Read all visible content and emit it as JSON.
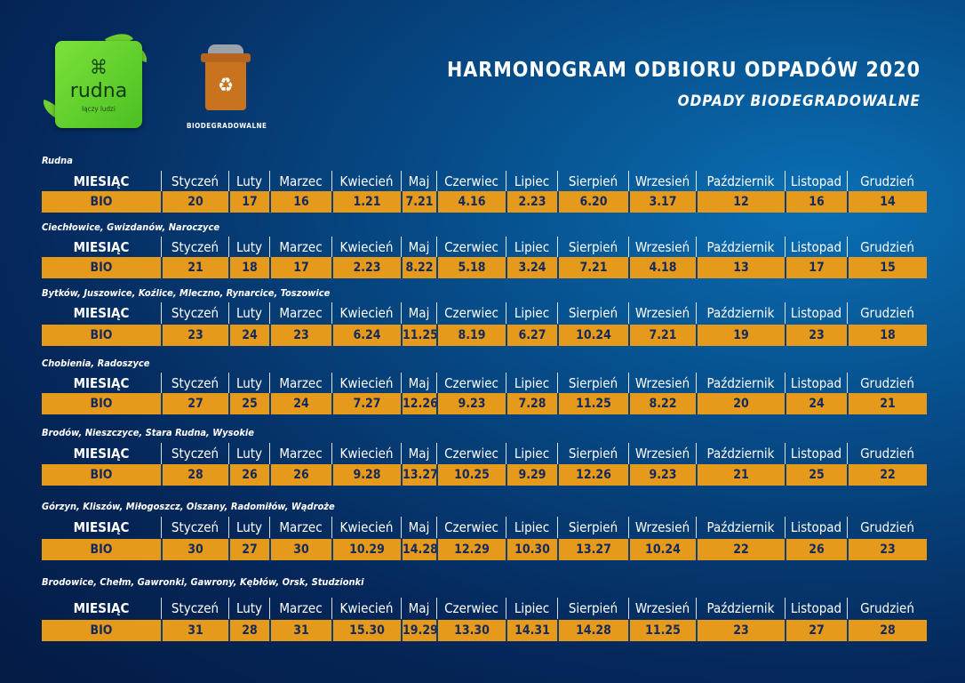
{
  "header": {
    "title": "HARMONOGRAM ODBIORU ODPADÓW 2020",
    "subtitle": "ODPADY BIODEGRADOWALNE",
    "bin_label": "BIODEGRADOWALNE",
    "logo_name": "rudna",
    "logo_tagline": "łączy ludzi",
    "logo_icon": "rudna-knot-icon",
    "bin_icon": "recycling-bin-icon",
    "colors": {
      "accent": "#e69a1c",
      "text_dark": "#142a5c",
      "background": "#05275a"
    }
  },
  "months_header": [
    "MIESIĄC",
    "Styczeń",
    "Luty",
    "Marzec",
    "Kwiecień",
    "Maj",
    "Czerwiec",
    "Lipiec",
    "Sierpień",
    "Wrzesień",
    "Październik",
    "Listopad",
    "Grudzień"
  ],
  "sections": [
    {
      "location": "Rudna",
      "label": "BIO",
      "values": [
        "20",
        "17",
        "16",
        "1.21",
        "7.21",
        "4.16",
        "2.23",
        "6.20",
        "3.17",
        "12",
        "16",
        "14"
      ]
    },
    {
      "location": "Ciechłowice, Gwizdanów, Naroczyce",
      "label": "BIO",
      "values": [
        "21",
        "18",
        "17",
        "2.23",
        "8.22",
        "5.18",
        "3.24",
        "7.21",
        "4.18",
        "13",
        "17",
        "15"
      ]
    },
    {
      "location": "Bytków, Juszowice, Koźlice, Mleczno, Rynarcice, Toszowice",
      "label": "BIO",
      "values": [
        "23",
        "24",
        "23",
        "6.24",
        "11.25",
        "8.19",
        "6.27",
        "10.24",
        "7.21",
        "19",
        "23",
        "18"
      ]
    },
    {
      "location": "Chobienia, Radoszyce",
      "label": "BIO",
      "values": [
        "27",
        "25",
        "24",
        "7.27",
        "12.26",
        "9.23",
        "7.28",
        "11.25",
        "8.22",
        "20",
        "24",
        "21"
      ]
    },
    {
      "location": "Brodów, Nieszczyce, Stara Rudna, Wysokie",
      "label": "BIO",
      "values": [
        "28",
        "26",
        "26",
        "9.28",
        "13.27",
        "10.25",
        "9.29",
        "12.26",
        "9.23",
        "21",
        "25",
        "22"
      ]
    },
    {
      "location": "Górzyn, Kliszów, Miłogoszcz, Olszany, Radomiłów, Wądroże",
      "label": "BIO",
      "values": [
        "30",
        "27",
        "30",
        "10.29",
        "14.28",
        "12.29",
        "10.30",
        "13.27",
        "10.24",
        "22",
        "26",
        "23"
      ]
    },
    {
      "location": "Brodowice, Chełm, Gawronki, Gawrony, Kębłów, Orsk, Studzionki",
      "label": "BIO",
      "values": [
        "31",
        "28",
        "31",
        "15.30",
        "19.29",
        "13.30",
        "14.31",
        "14.28",
        "11.25",
        "23",
        "27",
        "28"
      ]
    }
  ]
}
